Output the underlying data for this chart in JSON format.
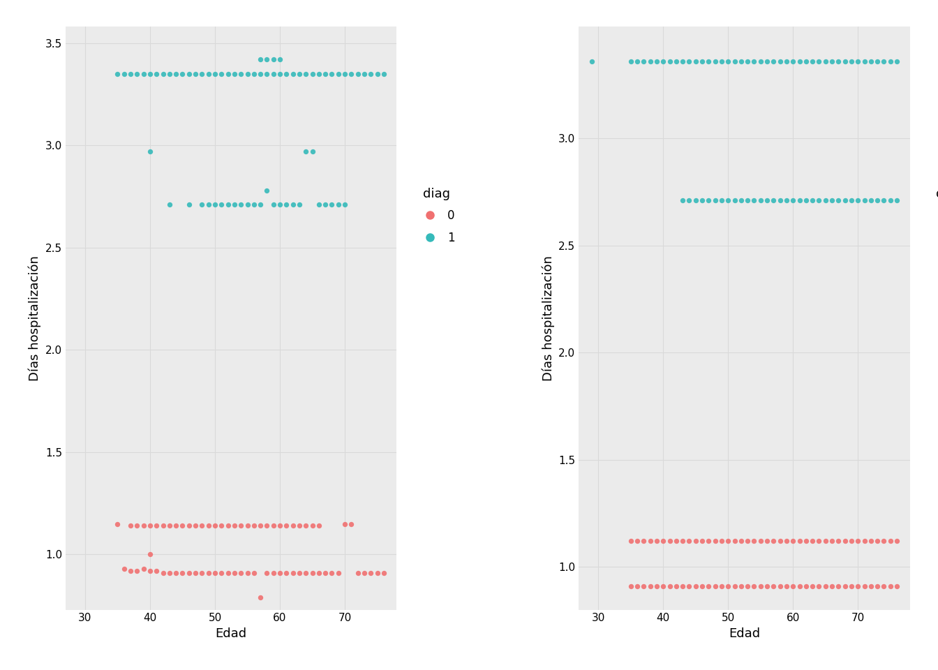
{
  "plot1": {
    "diag0_x": [
      35,
      36,
      37,
      37,
      38,
      38,
      39,
      39,
      40,
      40,
      40,
      41,
      41,
      42,
      42,
      43,
      43,
      44,
      44,
      45,
      45,
      46,
      46,
      47,
      47,
      48,
      48,
      49,
      49,
      50,
      50,
      51,
      51,
      52,
      52,
      53,
      53,
      54,
      54,
      55,
      55,
      56,
      56,
      57,
      57,
      58,
      58,
      59,
      59,
      60,
      60,
      61,
      61,
      62,
      62,
      63,
      63,
      64,
      64,
      65,
      65,
      66,
      66,
      67,
      68,
      69,
      70,
      71,
      72,
      73,
      74,
      75,
      76
    ],
    "diag0_y": [
      1.15,
      0.93,
      0.92,
      1.14,
      0.92,
      1.14,
      0.93,
      1.14,
      0.92,
      1.0,
      1.14,
      0.92,
      1.14,
      0.91,
      1.14,
      0.91,
      1.14,
      0.91,
      1.14,
      0.91,
      1.14,
      0.91,
      1.14,
      0.91,
      1.14,
      0.91,
      1.14,
      0.91,
      1.14,
      0.91,
      1.14,
      0.91,
      1.14,
      0.91,
      1.14,
      0.91,
      1.14,
      0.91,
      1.14,
      0.91,
      1.14,
      0.91,
      1.14,
      0.79,
      1.14,
      0.91,
      1.14,
      0.91,
      1.14,
      0.91,
      1.14,
      0.91,
      1.14,
      0.91,
      1.14,
      0.91,
      1.14,
      0.91,
      1.14,
      0.91,
      1.14,
      0.91,
      1.14,
      0.91,
      0.91,
      0.91,
      1.15,
      1.15,
      0.91,
      0.91,
      0.91,
      0.91,
      0.91
    ],
    "diag1_x": [
      35,
      36,
      37,
      38,
      39,
      40,
      41,
      42,
      43,
      44,
      45,
      46,
      47,
      48,
      49,
      50,
      51,
      52,
      53,
      54,
      55,
      56,
      57,
      57,
      58,
      58,
      59,
      59,
      60,
      60,
      61,
      62,
      63,
      64,
      65,
      66,
      67,
      68,
      69,
      70,
      71,
      72,
      73,
      74,
      75,
      76
    ],
    "diag1_y": [
      3.35,
      3.35,
      3.35,
      3.35,
      3.35,
      3.35,
      3.35,
      3.35,
      3.35,
      3.35,
      3.35,
      3.35,
      3.35,
      3.35,
      3.35,
      3.35,
      3.35,
      3.35,
      3.35,
      3.35,
      3.35,
      3.35,
      3.35,
      3.42,
      3.35,
      3.42,
      3.35,
      3.42,
      3.35,
      3.42,
      3.35,
      3.35,
      3.35,
      3.35,
      3.35,
      3.35,
      3.35,
      3.35,
      3.35,
      3.35,
      3.35,
      3.35,
      3.35,
      3.35,
      3.35,
      3.35
    ],
    "diag1_mid_x": [
      40,
      43,
      46,
      48,
      49,
      50,
      51,
      52,
      53,
      54,
      55,
      56,
      57,
      58,
      59,
      60,
      61,
      62,
      63,
      64,
      65,
      66,
      67,
      68,
      69,
      70
    ],
    "diag1_mid_y": [
      2.97,
      2.71,
      2.71,
      2.71,
      2.71,
      2.71,
      2.71,
      2.71,
      2.71,
      2.71,
      2.71,
      2.71,
      2.71,
      2.78,
      2.71,
      2.71,
      2.71,
      2.71,
      2.71,
      2.97,
      2.97,
      2.71,
      2.71,
      2.71,
      2.71,
      2.71
    ]
  },
  "plot2": {
    "diag0_x": [
      35,
      36,
      37,
      38,
      39,
      40,
      41,
      42,
      43,
      44,
      45,
      46,
      47,
      48,
      49,
      50,
      51,
      52,
      53,
      54,
      55,
      56,
      57,
      58,
      59,
      60,
      61,
      62,
      63,
      64,
      65,
      66,
      67,
      68,
      69,
      70,
      71,
      72,
      73,
      74,
      75,
      76
    ],
    "diag0_y_low": [
      0.91,
      0.91,
      0.91,
      0.91,
      0.91,
      0.91,
      0.91,
      0.91,
      0.91,
      0.91,
      0.91,
      0.91,
      0.91,
      0.91,
      0.91,
      0.91,
      0.91,
      0.91,
      0.91,
      0.91,
      0.91,
      0.91,
      0.91,
      0.91,
      0.91,
      0.91,
      0.91,
      0.91,
      0.91,
      0.91,
      0.91,
      0.91,
      0.91,
      0.91,
      0.91,
      0.91,
      0.91,
      0.91,
      0.91,
      0.91,
      0.91,
      0.91
    ],
    "diag0_y_high": [
      1.12,
      1.12,
      1.12,
      1.12,
      1.12,
      1.12,
      1.12,
      1.12,
      1.12,
      1.12,
      1.12,
      1.12,
      1.12,
      1.12,
      1.12,
      1.12,
      1.12,
      1.12,
      1.12,
      1.12,
      1.12,
      1.12,
      1.12,
      1.12,
      1.12,
      1.12,
      1.12,
      1.12,
      1.12,
      1.12,
      1.12,
      1.12,
      1.12,
      1.12,
      1.12,
      1.12,
      1.12,
      1.12,
      1.12,
      1.12,
      1.12,
      1.12
    ],
    "diag1_top_x": [
      29,
      35,
      36,
      37,
      38,
      39,
      40,
      41,
      42,
      43,
      44,
      45,
      46,
      47,
      48,
      49,
      50,
      51,
      52,
      53,
      54,
      55,
      56,
      57,
      58,
      59,
      60,
      61,
      62,
      63,
      64,
      65,
      66,
      67,
      68,
      69,
      70,
      71,
      72,
      73,
      74,
      75,
      76
    ],
    "diag1_top_y": [
      3.36,
      3.36,
      3.36,
      3.36,
      3.36,
      3.36,
      3.36,
      3.36,
      3.36,
      3.36,
      3.36,
      3.36,
      3.36,
      3.36,
      3.36,
      3.36,
      3.36,
      3.36,
      3.36,
      3.36,
      3.36,
      3.36,
      3.36,
      3.36,
      3.36,
      3.36,
      3.36,
      3.36,
      3.36,
      3.36,
      3.36,
      3.36,
      3.36,
      3.36,
      3.36,
      3.36,
      3.36,
      3.36,
      3.36,
      3.36,
      3.36,
      3.36,
      3.36
    ],
    "diag1_mid_x": [
      43,
      44,
      45,
      46,
      47,
      48,
      49,
      50,
      51,
      52,
      53,
      54,
      55,
      56,
      57,
      58,
      59,
      60,
      61,
      62,
      63,
      64,
      65,
      66,
      67,
      68,
      69,
      70,
      71,
      72,
      73,
      74,
      75,
      76
    ],
    "diag1_mid_y": [
      2.71,
      2.71,
      2.71,
      2.71,
      2.71,
      2.71,
      2.71,
      2.71,
      2.71,
      2.71,
      2.71,
      2.71,
      2.71,
      2.71,
      2.71,
      2.71,
      2.71,
      2.71,
      2.71,
      2.71,
      2.71,
      2.71,
      2.71,
      2.71,
      2.71,
      2.71,
      2.71,
      2.71,
      2.71,
      2.71,
      2.71,
      2.71,
      2.71,
      2.71
    ]
  },
  "color_diag0": "#F07070",
  "color_diag1": "#35BABA",
  "background_color": "#FFFFFF",
  "grid_color": "#D9D9D9",
  "panel_bg": "#EBEBEB",
  "xlabel": "Edad",
  "ylabel": "Días hospitalización",
  "legend_title": "diag",
  "xlim": [
    27,
    78
  ],
  "ylim_left": [
    0.73,
    3.58
  ],
  "ylim_right": [
    0.8,
    3.52
  ],
  "yticks_left": [
    1.0,
    1.5,
    2.0,
    2.5,
    3.0,
    3.5
  ],
  "yticks_right": [
    1.0,
    1.5,
    2.0,
    2.5,
    3.0
  ],
  "xticks": [
    30,
    40,
    50,
    60,
    70
  ],
  "marker_size": 28,
  "alpha": 0.9
}
